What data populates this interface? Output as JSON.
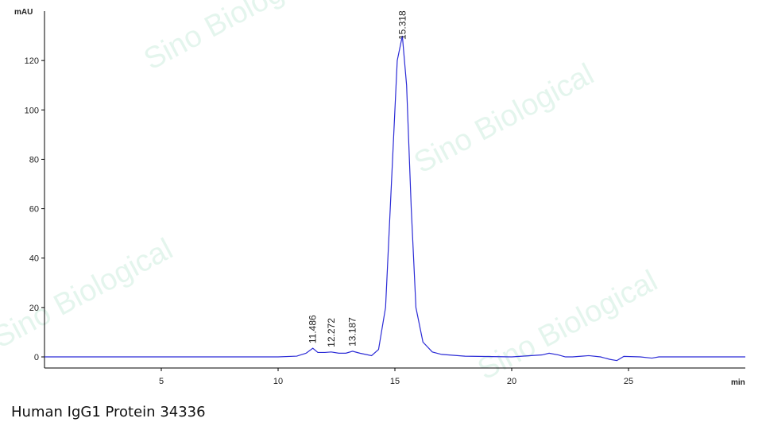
{
  "chart_data": {
    "type": "line",
    "y_label": "mAU",
    "x_label": "min",
    "caption": "Human IgG1 Protein 34336",
    "watermark": "Sino Biological",
    "xlim": [
      0,
      30
    ],
    "ylim": [
      -4.5,
      140
    ],
    "xticks": [
      5,
      10,
      15,
      20,
      25
    ],
    "yticks": [
      0,
      20,
      40,
      60,
      80,
      100,
      120
    ],
    "peak_labels": [
      11.486,
      12.272,
      13.187,
      15.318
    ],
    "series": [
      {
        "color": "#2b2bd6",
        "x": [
          0,
          5,
          10,
          10.8,
          11.2,
          11.486,
          11.7,
          12.0,
          12.272,
          12.6,
          12.9,
          13.187,
          13.5,
          14.0,
          14.3,
          14.6,
          14.9,
          15.1,
          15.318,
          15.5,
          15.7,
          15.9,
          16.2,
          16.6,
          17,
          18,
          20,
          21.3,
          21.6,
          22,
          22.3,
          22.6,
          23,
          23.3,
          23.8,
          24.2,
          24.5,
          24.8,
          25.5,
          26,
          26.3,
          27,
          30
        ],
        "values": [
          0,
          0,
          0,
          0.3,
          1.5,
          3.5,
          1.8,
          1.8,
          2.0,
          1.5,
          1.5,
          2.3,
          1.5,
          0.5,
          3,
          20,
          80,
          120,
          130,
          110,
          60,
          20,
          6,
          2,
          1,
          0.3,
          0,
          0.8,
          1.5,
          0.8,
          0,
          0,
          0.3,
          0.5,
          0,
          -1,
          -1.5,
          0.2,
          0,
          -0.5,
          0,
          0,
          0
        ]
      }
    ]
  }
}
